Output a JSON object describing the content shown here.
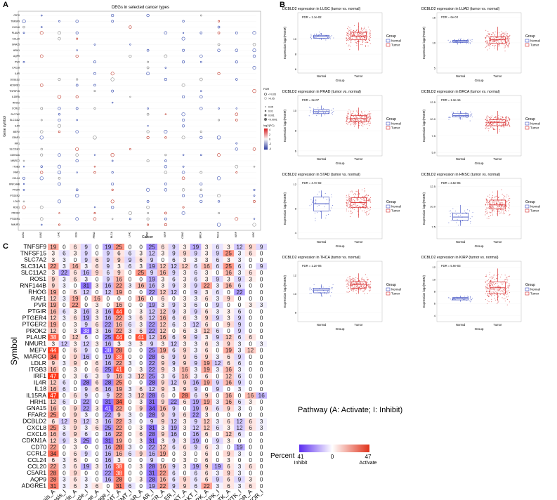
{
  "panel_letters": {
    "a": "A",
    "b": "B",
    "c": "C"
  },
  "panel_a": {
    "title": "DEGs in selected cancer types",
    "ylabel": "Gene symbol",
    "xlabel": "Cancer",
    "genes": [
      "CD70",
      "TNFSF9",
      "CXCL6",
      "PLAUR",
      "CCL20",
      "GNA15",
      "HRH1",
      "AQP9",
      "PVR",
      "CXCL8",
      "IL4R",
      "DCBLD2",
      "ADGRE1",
      "TNFSF15",
      "IL15RA",
      "RHOG",
      "CCRL2",
      "SLC7A2",
      "SLC11A2",
      "IL4R",
      "MEFV",
      "C5AR1",
      "IRF1",
      "SLC31A1",
      "CDKN1A",
      "MARCO",
      "ITGB3",
      "RAF1",
      "CCL24",
      "RNF144B",
      "PTGIR",
      "PTGER2",
      "LDLR",
      "ROS1",
      "PROK2",
      "PTGER4",
      "NMUR1"
    ],
    "cancers": [
      "LUSC",
      "LUAD",
      "LIHC",
      "KICH",
      "PRAD",
      "BLCA",
      "LIHC",
      "STAD",
      "KIRP",
      "COAD",
      "BRCA",
      "THCA",
      "KIRP",
      "KIRC"
    ],
    "legend_fdr_title": "FDR",
    "legend_fdr": [
      "<=0.05",
      ">0.05"
    ],
    "legend_p_title": "",
    "legend_p": [
      "0.05",
      "0.01",
      "0.001",
      "<0.0001"
    ],
    "legend_fc_title": "log2(FC)",
    "legend_fc_ticks": [
      "4",
      "2",
      "0",
      "-2",
      "-4"
    ]
  },
  "panel_b": {
    "xlabel": "Group",
    "ylabel": "Expression log2(RSEM)",
    "legend_title": "Group",
    "legend_items": [
      "Normal",
      "Tumor"
    ],
    "colors": {
      "normal": "#3b4cc0",
      "tumor": "#d62728"
    },
    "plots": [
      {
        "title": "DCBLD2 expression in LUSC (tumor vs. normal)",
        "fdr": "FDR = 1.1e-02",
        "ticks": [
          "10",
          "8",
          "6"
        ],
        "normal": {
          "median": 10.3,
          "q1": 10.1,
          "q3": 10.5,
          "lo": 9.9,
          "hi": 10.8
        },
        "tumor": {
          "median": 10.4,
          "q1": 9.9,
          "q3": 10.9,
          "lo": 8.5,
          "hi": 12.2
        },
        "ymin": 5.5,
        "ymax": 13.5
      },
      {
        "title": "DCBLD2 expression in LUAD (tumor vs. normal)",
        "fdr": "FDR = 6e-04",
        "ticks": [
          "15",
          "10",
          "5"
        ],
        "normal": {
          "median": 10.3,
          "q1": 10.1,
          "q3": 10.5,
          "lo": 9.9,
          "hi": 10.8
        },
        "tumor": {
          "median": 10.6,
          "q1": 9.9,
          "q3": 11.2,
          "lo": 8.5,
          "hi": 13.2
        },
        "ymin": 4,
        "ymax": 16
      },
      {
        "title": "DCBLD2 expression in PRAD (tumor vs. normal)",
        "fdr": "FDR = 2e-07",
        "ticks": [
          "10",
          "8",
          "6"
        ],
        "normal": {
          "median": 9.9,
          "q1": 9.7,
          "q3": 10.1,
          "lo": 9.4,
          "hi": 10.5
        },
        "tumor": {
          "median": 9.2,
          "q1": 8.9,
          "q3": 9.5,
          "lo": 8.2,
          "hi": 10.3
        },
        "ymin": 5.5,
        "ymax": 11.5
      },
      {
        "title": "DCBLD2 expression in BRCA (tumor vs. normal)",
        "fdr": "FDR = 1.3e-15",
        "ticks": [
          "12.5",
          "10.0",
          "7.5",
          "5.0"
        ],
        "normal": {
          "median": 10.5,
          "q1": 10.3,
          "q3": 10.8,
          "lo": 9.9,
          "hi": 11.2
        },
        "tumor": {
          "median": 9.5,
          "q1": 9.0,
          "q3": 9.9,
          "lo": 7.8,
          "hi": 11.2
        },
        "ymin": 4.5,
        "ymax": 13.5
      },
      {
        "title": "DCBLD2 expression in STAD (tumor vs. normal)",
        "fdr": "FDR = 4.7e-02",
        "ticks": [
          "12",
          "8",
          "4"
        ],
        "normal": {
          "median": 8.8,
          "q1": 7.6,
          "q3": 9.9,
          "lo": 6.3,
          "hi": 11.0
        },
        "tumor": {
          "median": 9.0,
          "q1": 8.2,
          "q3": 9.8,
          "lo": 6.5,
          "hi": 11.2
        },
        "ymin": 3,
        "ymax": 13
      },
      {
        "title": "DCBLD2 expression in HNSC (tumor vs. normal)",
        "fdr": "FDR = 3.5e-05",
        "ticks": [
          "12.5",
          "10.0",
          "7.5"
        ],
        "normal": {
          "median": 8.7,
          "q1": 8.3,
          "q3": 9.2,
          "lo": 7.6,
          "hi": 10.2
        },
        "tumor": {
          "median": 10.2,
          "q1": 9.7,
          "q3": 10.8,
          "lo": 8.8,
          "hi": 12.0
        },
        "ymin": 6,
        "ymax": 13.5
      },
      {
        "title": "DCBLD2 expression in THCA (tumor vs. normal)",
        "fdr": "FDR = 1.2e-06",
        "ticks": [
          "12",
          "10",
          "8"
        ],
        "normal": {
          "median": 10.4,
          "q1": 10.1,
          "q3": 10.6,
          "lo": 9.7,
          "hi": 11.0
        },
        "tumor": {
          "median": 11.0,
          "q1": 10.6,
          "q3": 11.3,
          "lo": 10.0,
          "hi": 12.2
        },
        "ymin": 7,
        "ymax": 13.5
      },
      {
        "title": "DCBLD2 expression in KIRP (tumor vs. normal)",
        "fdr": "FDR = 5.9e-03",
        "ticks": [
          "12",
          "10",
          "8",
          "6",
          "4"
        ],
        "normal": {
          "median": 6.8,
          "q1": 6.6,
          "q3": 7.0,
          "lo": 6.3,
          "hi": 7.3
        },
        "tumor": {
          "median": 8.6,
          "q1": 7.6,
          "q3": 9.6,
          "lo": 6.5,
          "hi": 11.8
        },
        "ymin": 3,
        "ymax": 13
      }
    ]
  },
  "panel_c": {
    "ylabel": "Symbol",
    "pathway_title": "Pathway (A: Activate; I: Inhibit)",
    "percent_label": "Percent",
    "legend_left": "41",
    "legend_left_sub": "Inhibit",
    "legend_mid": "0",
    "legend_right": "47",
    "legend_right_sub": "Activate",
    "symbols": [
      "TNFSF9",
      "TNFSF15",
      "SLC7A2",
      "SLC31A1",
      "SLC11A2",
      "ROS1",
      "RNF144B",
      "RHOG",
      "RAF1",
      "PVR",
      "PTGIR",
      "PTGER4",
      "PTGER2",
      "PROK2",
      "PLAUR",
      "NMUR1",
      "MEFV",
      "MARCO",
      "LDLR",
      "ITGB3",
      "IRF1",
      "IL4R",
      "IL18",
      "IL15RA",
      "HRH1",
      "GNA15",
      "FFAR2",
      "DCBLD2",
      "CXCL8",
      "CXCL6",
      "CDKN1A",
      "CD70",
      "CCRL2",
      "CCL24",
      "CCL20",
      "C5AR1",
      "AQP9",
      "ADGRE1"
    ],
    "pathways": [
      "Apoptosis_A",
      "Apoptosis_I",
      "CellCycle_A",
      "CellCycle_I",
      "DNADamage_A",
      "DNADamage_I",
      "EMT_A",
      "EMT_I",
      "Hormone AR_A",
      "Hormone AR_I",
      "Hormone ER_A",
      "Hormone ER_I",
      "PI3K/AKT_A",
      "PI3K/AKT_I",
      "RAS/MAPK_A",
      "RAS/MAPK_I",
      "RTK_A",
      "RTK_I",
      "TSC/mTOR_A",
      "TSC/mTOR_I"
    ],
    "values": [
      [
        19,
        0,
        6,
        9,
        0,
        19,
        25,
        0,
        0,
        25,
        6,
        9,
        3,
        19,
        3,
        6,
        3,
        12,
        9,
        9
      ],
      [
        3,
        6,
        3,
        9,
        0,
        9,
        6,
        6,
        3,
        12,
        3,
        9,
        9,
        9,
        3,
        9,
        25,
        3,
        6,
        0
      ],
      [
        3,
        3,
        0,
        9,
        6,
        9,
        9,
        9,
        6,
        9,
        0,
        6,
        3,
        3,
        3,
        6,
        3,
        3,
        0,
        0
      ],
      [
        22,
        3,
        16,
        3,
        6,
        9,
        3,
        6,
        3,
        19,
        12,
        12,
        12,
        6,
        16,
        6,
        25,
        6,
        0,
        9
      ],
      [
        3,
        22,
        6,
        16,
        9,
        6,
        9,
        0,
        25,
        9,
        16,
        9,
        3,
        6,
        3,
        0,
        16,
        3,
        6,
        0
      ],
      [
        9,
        3,
        6,
        3,
        0,
        9,
        16,
        0,
        0,
        19,
        3,
        6,
        3,
        6,
        3,
        9,
        3,
        9,
        3,
        0
      ],
      [
        9,
        3,
        0,
        31,
        3,
        16,
        22,
        3,
        16,
        16,
        3,
        9,
        3,
        9,
        22,
        3,
        16,
        6,
        0,
        0
      ],
      [
        19,
        0,
        6,
        12,
        0,
        12,
        19,
        0,
        0,
        22,
        12,
        12,
        0,
        9,
        3,
        6,
        0,
        22,
        0,
        0
      ],
      [
        12,
        3,
        19,
        0,
        16,
        0,
        0,
        0,
        16,
        0,
        6,
        0,
        3,
        3,
        6,
        3,
        9,
        0,
        0,
        0
      ],
      [
        19,
        0,
        22,
        0,
        3,
        0,
        16,
        0,
        0,
        19,
        3,
        9,
        3,
        6,
        0,
        9,
        0,
        0,
        3,
        3
      ],
      [
        16,
        6,
        3,
        16,
        3,
        16,
        44,
        0,
        3,
        12,
        12,
        9,
        3,
        9,
        6,
        3,
        3,
        6,
        0,
        0
      ],
      [
        12,
        3,
        6,
        19,
        3,
        16,
        22,
        3,
        6,
        12,
        16,
        6,
        6,
        3,
        9,
        9,
        3,
        9,
        0,
        0
      ],
      [
        19,
        0,
        3,
        9,
        6,
        22,
        16,
        6,
        3,
        22,
        12,
        6,
        3,
        12,
        6,
        0,
        9,
        9,
        0,
        0
      ],
      [
        12,
        0,
        3,
        38,
        3,
        16,
        22,
        3,
        6,
        22,
        12,
        0,
        6,
        3,
        12,
        6,
        0,
        9,
        0,
        0
      ],
      [
        38,
        0,
        12,
        6,
        0,
        25,
        44,
        0,
        41,
        12,
        16,
        6,
        9,
        9,
        3,
        9,
        12,
        6,
        6,
        0
      ],
      [
        3,
        12,
        3,
        12,
        3,
        16,
        3,
        3,
        3,
        9,
        3,
        12,
        3,
        3,
        6,
        3,
        9,
        3,
        0,
        3
      ],
      [
        44,
        0,
        6,
        9,
        0,
        38,
        28,
        0,
        0,
        25,
        19,
        6,
        9,
        3,
        6,
        0,
        19,
        3,
        12,
        0
      ],
      [
        34,
        0,
        9,
        16,
        0,
        19,
        38,
        0,
        0,
        28,
        6,
        9,
        9,
        6,
        9,
        3,
        6,
        9,
        0,
        0
      ],
      [
        9,
        3,
        9,
        0,
        6,
        16,
        22,
        3,
        0,
        22,
        9,
        9,
        9,
        9,
        19,
        12,
        6,
        6,
        0,
        0
      ],
      [
        16,
        0,
        3,
        0,
        6,
        25,
        41,
        0,
        3,
        22,
        9,
        3,
        16,
        3,
        19,
        3,
        16,
        3,
        0,
        0
      ],
      [
        47,
        0,
        3,
        6,
        3,
        9,
        16,
        3,
        12,
        25,
        3,
        6,
        16,
        3,
        6,
        0,
        12,
        6,
        0,
        0
      ],
      [
        12,
        6,
        0,
        28,
        6,
        28,
        25,
        0,
        0,
        28,
        9,
        12,
        9,
        16,
        19,
        9,
        16,
        9,
        0,
        0
      ],
      [
        16,
        6,
        0,
        9,
        6,
        16,
        19,
        3,
        6,
        12,
        9,
        3,
        9,
        9,
        0,
        9,
        0,
        3,
        0,
        0
      ],
      [
        47,
        0,
        6,
        9,
        0,
        9,
        22,
        3,
        12,
        28,
        6,
        0,
        28,
        6,
        9,
        0,
        16,
        0,
        16,
        16
      ],
      [
        12,
        6,
        0,
        22,
        0,
        31,
        34,
        0,
        3,
        31,
        9,
        22,
        6,
        19,
        19,
        3,
        16,
        6,
        3,
        0
      ],
      [
        16,
        0,
        9,
        22,
        3,
        41,
        22,
        0,
        9,
        34,
        16,
        9,
        0,
        19,
        9,
        6,
        9,
        3,
        0,
        0
      ],
      [
        25,
        0,
        9,
        3,
        0,
        22,
        9,
        3,
        0,
        28,
        9,
        9,
        6,
        22,
        3,
        0,
        0,
        0,
        0,
        0
      ],
      [
        6,
        12,
        9,
        12,
        3,
        16,
        22,
        3,
        0,
        9,
        9,
        12,
        3,
        9,
        12,
        3,
        6,
        12,
        6,
        3
      ],
      [
        25,
        3,
        9,
        3,
        6,
        25,
        22,
        0,
        3,
        31,
        3,
        19,
        3,
        12,
        12,
        6,
        3,
        12,
        6,
        3
      ],
      [
        16,
        6,
        9,
        6,
        0,
        16,
        22,
        0,
        6,
        28,
        9,
        16,
        0,
        16,
        6,
        0,
        12,
        6,
        0,
        0
      ],
      [
        12,
        9,
        3,
        25,
        0,
        31,
        19,
        0,
        3,
        31,
        3,
        9,
        3,
        19,
        0,
        9,
        3,
        0,
        0,
        0
      ],
      [
        22,
        0,
        3,
        0,
        0,
        16,
        28,
        3,
        0,
        22,
        12,
        6,
        6,
        9,
        6,
        3,
        0,
        19,
        0,
        0
      ],
      [
        34,
        0,
        6,
        9,
        0,
        16,
        16,
        6,
        9,
        16,
        19,
        0,
        3,
        0,
        6,
        0,
        9,
        3,
        0,
        0
      ],
      [
        6,
        3,
        6,
        0,
        0,
        16,
        3,
        0,
        0,
        9,
        0,
        0,
        3,
        0,
        6,
        0,
        3,
        0,
        0,
        0
      ],
      [
        22,
        3,
        6,
        19,
        3,
        16,
        38,
        0,
        3,
        28,
        16,
        9,
        3,
        19,
        9,
        19,
        6,
        3,
        6,
        0
      ],
      [
        28,
        0,
        9,
        0,
        0,
        22,
        38,
        0,
        0,
        31,
        22,
        6,
        0,
        6,
        6,
        3,
        9,
        3,
        0,
        0
      ],
      [
        28,
        3,
        6,
        3,
        0,
        16,
        28,
        0,
        3,
        28,
        16,
        6,
        9,
        6,
        6,
        9,
        6,
        9,
        3,
        0
      ],
      [
        31,
        3,
        6,
        3,
        6,
        0,
        31,
        6,
        0,
        19,
        22,
        9,
        9,
        6,
        22,
        3,
        6,
        3,
        6,
        0
      ]
    ]
  }
}
